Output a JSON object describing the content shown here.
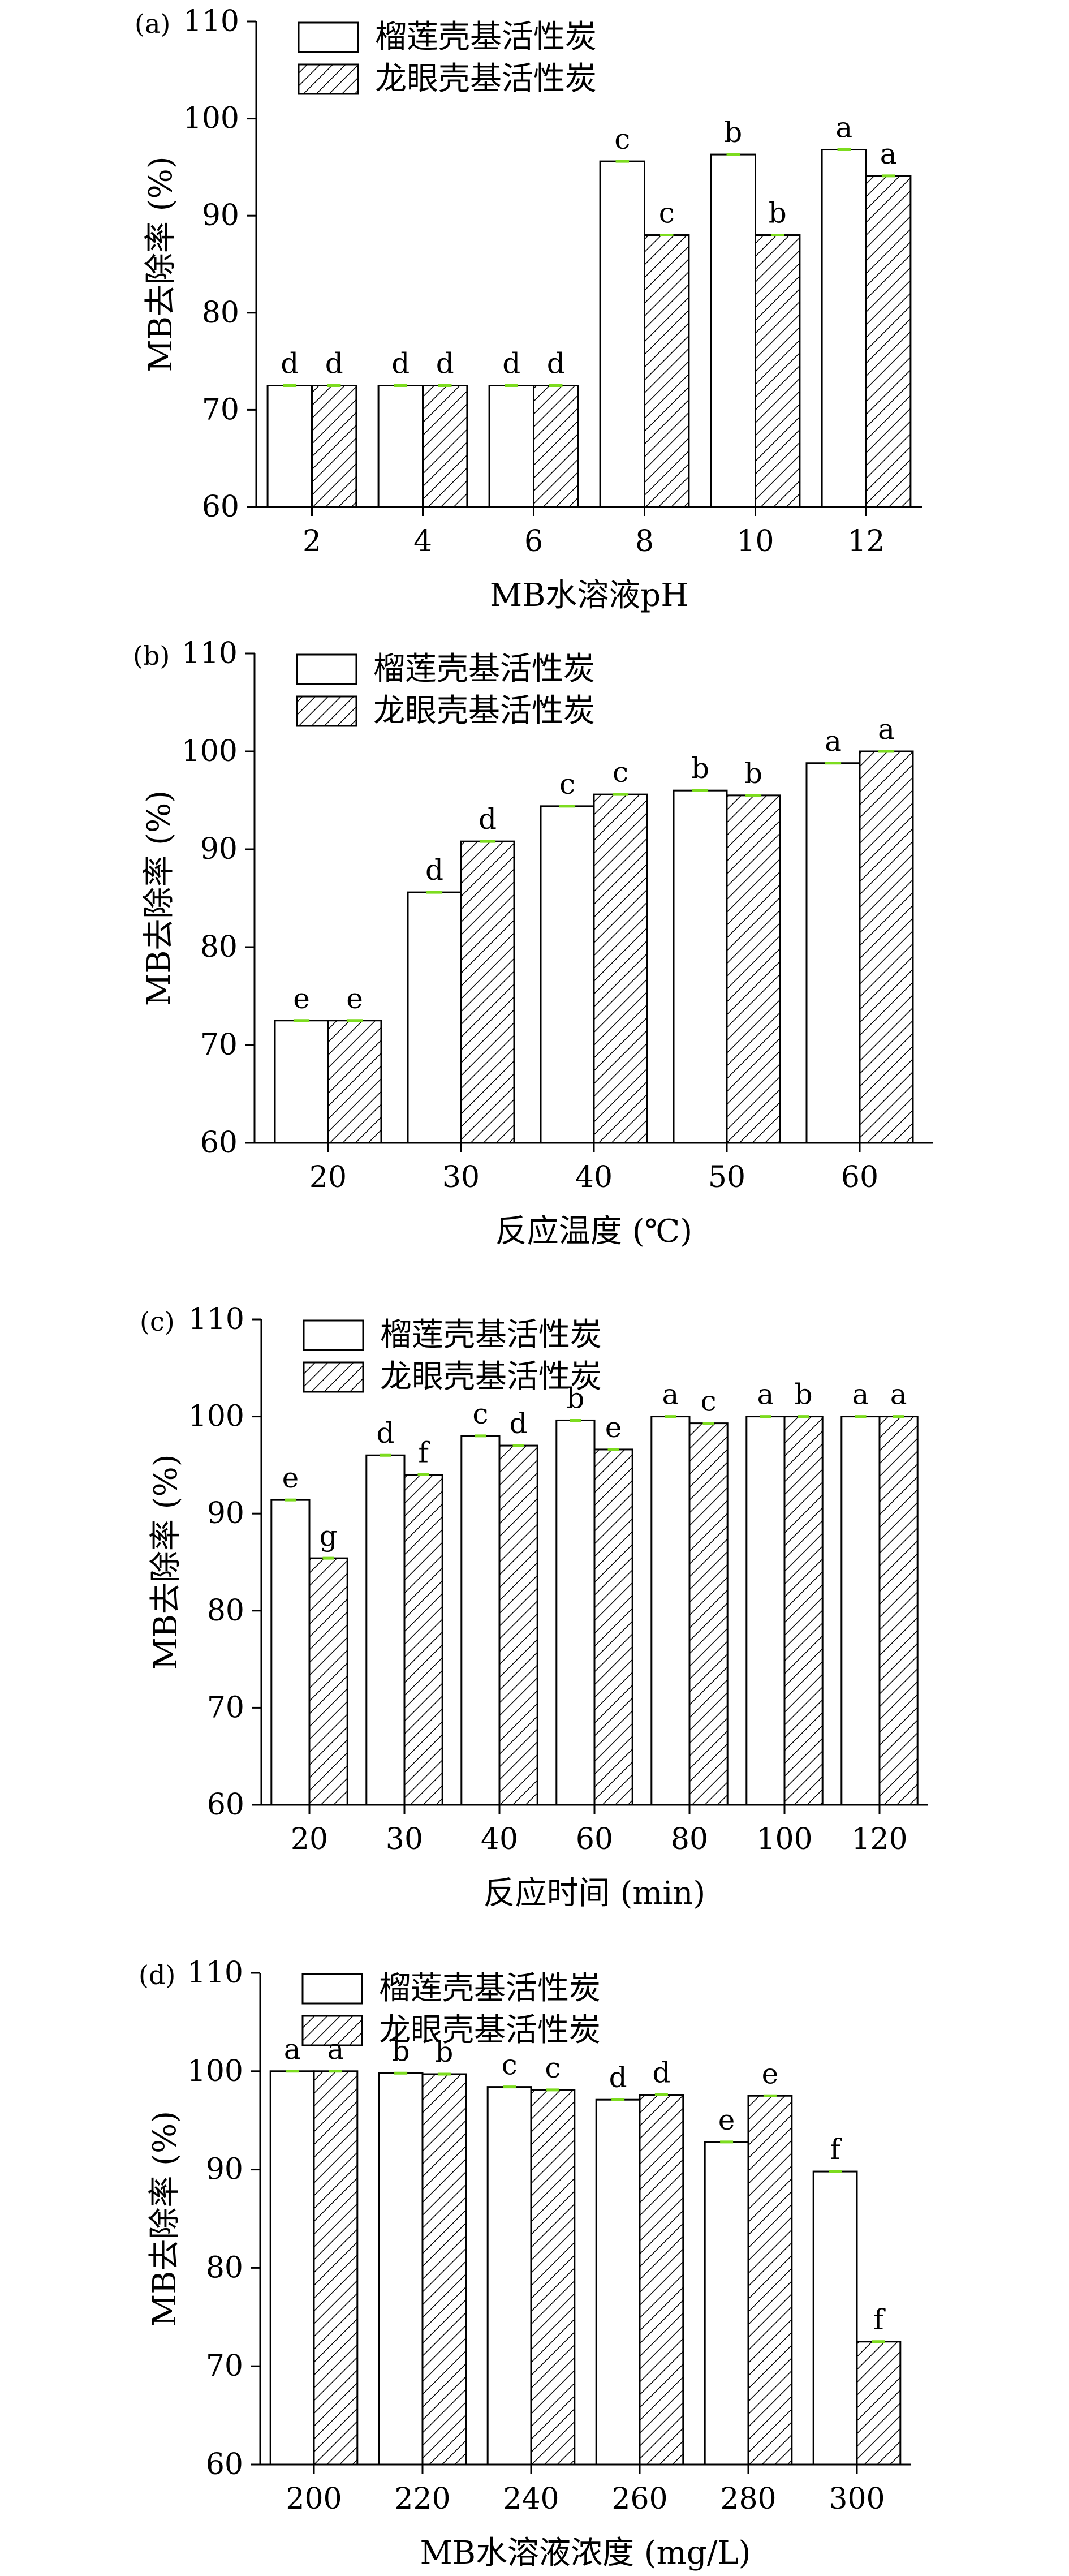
{
  "colors": {
    "axis": "#000000",
    "bar_fill": "#ffffff",
    "hatch": "#000000",
    "error_bar": "#7ddc1f"
  },
  "legend": {
    "series_a": "榴莲壳基活性炭",
    "series_b": "龙眼壳基活性炭"
  },
  "chart_data": [
    {
      "panel": "(a)",
      "type": "bar",
      "xlabel": "MB水溶液pH",
      "ylabel": "MB去除率 (%)",
      "ylim": [
        60,
        110
      ],
      "yticks": [
        60,
        70,
        80,
        90,
        100,
        110
      ],
      "grid": false,
      "legend_position": "top-left",
      "categories": [
        "2",
        "4",
        "6",
        "8",
        "10",
        "12"
      ],
      "series": [
        {
          "name": "榴莲壳基活性炭",
          "pattern": "plain",
          "values": [
            72.5,
            72.5,
            72.5,
            95.6,
            96.3,
            96.8
          ],
          "letters": [
            "d",
            "d",
            "d",
            "c",
            "b",
            "a"
          ]
        },
        {
          "name": "龙眼壳基活性炭",
          "pattern": "hatched",
          "values": [
            72.5,
            72.5,
            72.5,
            88.0,
            88.0,
            94.1
          ],
          "letters": [
            "d",
            "d",
            "d",
            "c",
            "b",
            "a"
          ]
        }
      ]
    },
    {
      "panel": "(b)",
      "type": "bar",
      "xlabel": "反应温度 (℃)",
      "ylabel": "MB去除率 (%)",
      "ylim": [
        60,
        110
      ],
      "yticks": [
        60,
        70,
        80,
        90,
        100,
        110
      ],
      "grid": false,
      "legend_position": "top-left",
      "categories": [
        "20",
        "30",
        "40",
        "50",
        "60"
      ],
      "series": [
        {
          "name": "榴莲壳基活性炭",
          "pattern": "plain",
          "values": [
            72.5,
            85.6,
            94.4,
            96.0,
            98.8
          ],
          "letters": [
            "e",
            "d",
            "c",
            "b",
            "a"
          ]
        },
        {
          "name": "龙眼壳基活性炭",
          "pattern": "hatched",
          "values": [
            72.5,
            90.8,
            95.6,
            95.5,
            100.0
          ],
          "letters": [
            "e",
            "d",
            "c",
            "b",
            "a"
          ]
        }
      ]
    },
    {
      "panel": "(c)",
      "type": "bar",
      "xlabel": "反应时间 (min)",
      "ylabel": "MB去除率 (%)",
      "ylim": [
        60,
        110
      ],
      "yticks": [
        60,
        70,
        80,
        90,
        100,
        110
      ],
      "grid": false,
      "legend_position": "top-left",
      "categories": [
        "20",
        "30",
        "40",
        "60",
        "80",
        "100",
        "120"
      ],
      "series": [
        {
          "name": "榴莲壳基活性炭",
          "pattern": "plain",
          "values": [
            91.4,
            96.0,
            98.0,
            99.6,
            100.0,
            100.0,
            100.0
          ],
          "letters": [
            "e",
            "d",
            "c",
            "b",
            "a",
            "a",
            "a"
          ]
        },
        {
          "name": "龙眼壳基活性炭",
          "pattern": "hatched",
          "values": [
            85.4,
            94.0,
            97.0,
            96.6,
            99.3,
            100.0,
            100.0
          ],
          "letters": [
            "g",
            "f",
            "d",
            "e",
            "c",
            "b",
            "a"
          ]
        }
      ]
    },
    {
      "panel": "(d)",
      "type": "bar",
      "xlabel": "MB水溶液浓度 (mg/L)",
      "ylabel": "MB去除率 (%)",
      "ylim": [
        60,
        110
      ],
      "yticks": [
        60,
        70,
        80,
        90,
        100,
        110
      ],
      "grid": false,
      "legend_position": "top-left",
      "categories": [
        "200",
        "220",
        "240",
        "260",
        "280",
        "300"
      ],
      "series": [
        {
          "name": "榴莲壳基活性炭",
          "pattern": "plain",
          "values": [
            100.0,
            99.8,
            98.4,
            97.1,
            92.8,
            89.8
          ],
          "letters": [
            "a",
            "b",
            "c",
            "d",
            "e",
            "f"
          ]
        },
        {
          "name": "龙眼壳基活性炭",
          "pattern": "hatched",
          "values": [
            100.0,
            99.7,
            98.1,
            97.6,
            97.5,
            72.5
          ],
          "letters": [
            "a",
            "b",
            "c",
            "d",
            "e",
            "f"
          ]
        }
      ]
    }
  ]
}
